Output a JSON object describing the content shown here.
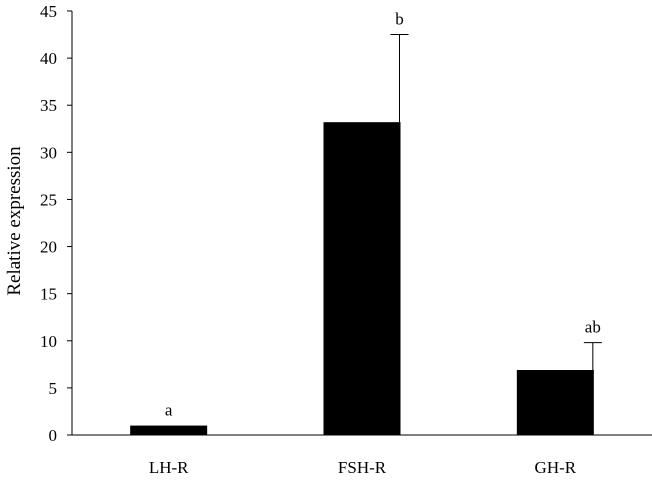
{
  "chart_data": {
    "type": "bar",
    "title": "",
    "xlabel": "",
    "ylabel": "Relative expression",
    "ylim": [
      0,
      45
    ],
    "yticks": [
      0,
      5,
      10,
      15,
      20,
      25,
      30,
      35,
      40,
      45
    ],
    "categories": [
      "LH-R",
      "FSH-R",
      "GH-R"
    ],
    "values": [
      1.0,
      33.2,
      6.9
    ],
    "error_upper": [
      0.0,
      42.5,
      9.8
    ],
    "significance_labels": [
      "a",
      "b",
      "ab"
    ],
    "grid": false,
    "legend": "none",
    "colors": {
      "bar": "#000000",
      "axis": "#000000",
      "background": "#ffffff"
    }
  }
}
